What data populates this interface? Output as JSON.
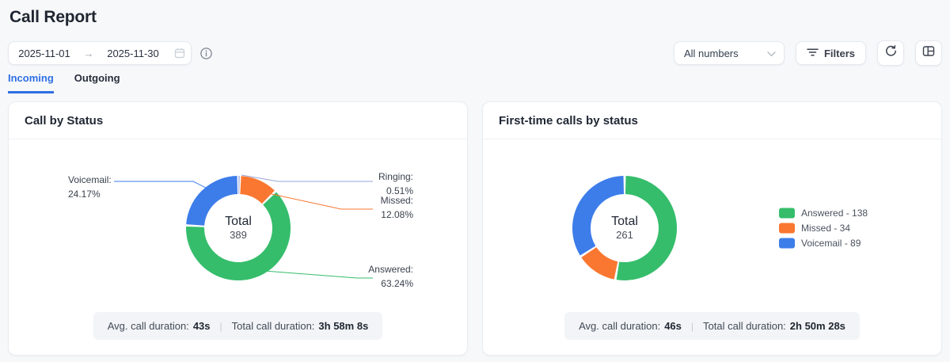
{
  "page": {
    "title": "Call Report"
  },
  "toolbar": {
    "date_from": "2025-11-01",
    "date_to": "2025-11-30",
    "arrow": "→",
    "numbers_select_value": "All numbers",
    "filters_label": "Filters"
  },
  "tabs": [
    {
      "label": "Incoming",
      "active": true
    },
    {
      "label": "Outgoing",
      "active": false
    }
  ],
  "cards": [
    {
      "title": "Call by Status",
      "footer": {
        "avg_label": "Avg. call duration:",
        "avg_value": "43s",
        "divider": "|",
        "total_label": "Total call duration:",
        "total_value": "3h 58m 8s"
      }
    },
    {
      "title": "First-time calls by status",
      "footer": {
        "avg_label": "Avg. call duration:",
        "avg_value": "46s",
        "divider": "|",
        "total_label": "Total call duration:",
        "total_value": "2h 50m 28s"
      }
    }
  ],
  "chart_data": [
    {
      "type": "pie",
      "variant": "donut",
      "title": "Call by Status",
      "center_label": "Total",
      "center_value": "389",
      "labels_mode": "callout",
      "series": [
        {
          "name": "Ringing",
          "pct": 0.51,
          "pct_label": "0.51%",
          "color": "#97A6D9"
        },
        {
          "name": "Missed",
          "pct": 12.08,
          "pct_label": "12.08%",
          "color": "#F97731"
        },
        {
          "name": "Answered",
          "pct": 63.24,
          "pct_label": "63.24%",
          "color": "#35BD6B"
        },
        {
          "name": "Voicemail",
          "pct": 24.17,
          "pct_label": "24.17%",
          "color": "#3D7DEA"
        }
      ]
    },
    {
      "type": "pie",
      "variant": "donut",
      "title": "First-time calls by status",
      "center_label": "Total",
      "center_value": "261",
      "labels_mode": "legend",
      "series": [
        {
          "name": "Answered",
          "value": 138,
          "color": "#35BD6B"
        },
        {
          "name": "Missed",
          "value": 34,
          "color": "#F97731"
        },
        {
          "name": "Voicemail",
          "value": 89,
          "color": "#3D7DEA"
        }
      ]
    }
  ]
}
